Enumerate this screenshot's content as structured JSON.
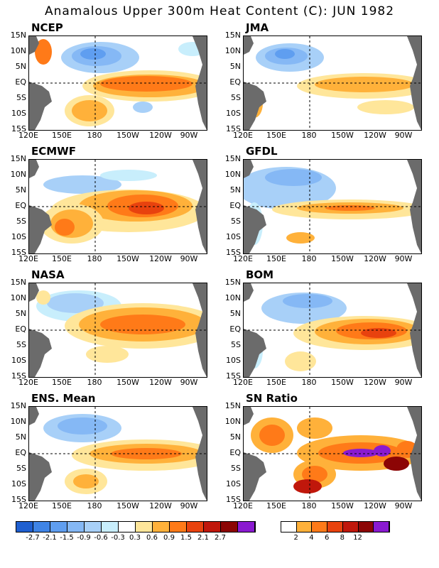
{
  "title": "Anamalous Upper 300m Heat Content (C): JUN 1982",
  "lat_labels": [
    "15N",
    "10N",
    "5N",
    "EQ",
    "5S",
    "10S",
    "15S"
  ],
  "lon_labels": [
    "120E",
    "150E",
    "180",
    "150W",
    "120W",
    "90W"
  ],
  "panels": [
    {
      "name": "NCEP",
      "label": "NCEP"
    },
    {
      "name": "JMA",
      "label": "JMA"
    },
    {
      "name": "ECMWF",
      "label": "ECMWF"
    },
    {
      "name": "GFDL",
      "label": "GFDL"
    },
    {
      "name": "NASA",
      "label": "NASA"
    },
    {
      "name": "BOM",
      "label": "BOM"
    },
    {
      "name": "ENS",
      "label": "ENS. Mean"
    },
    {
      "name": "SN",
      "label": "SN Ratio"
    }
  ],
  "anom_colorbar": {
    "colors": [
      "#1f5fd0",
      "#3f84e6",
      "#5f9ef0",
      "#85b8f5",
      "#a8d0f8",
      "#c8eefc",
      "#ffffff",
      "#ffe69a",
      "#ffb13a",
      "#ff7a18",
      "#e8420e",
      "#c0170b",
      "#8c0505",
      "#8a1ad0"
    ],
    "labels": [
      "-2.7",
      "-2.1",
      "-1.5",
      "-0.9",
      "-0.6",
      "-0.3",
      "0.3",
      "0.6",
      "0.9",
      "1.5",
      "2.1",
      "2.7"
    ]
  },
  "sn_colorbar": {
    "colors": [
      "#ffffff",
      "#ffb13a",
      "#ff7a18",
      "#e8420e",
      "#c0170b",
      "#8c0505",
      "#8a1ad0"
    ],
    "labels": [
      "2",
      "4",
      "6",
      "8",
      "12"
    ]
  },
  "colors": {
    "land": "#6b6b6b",
    "border": "#000000"
  }
}
